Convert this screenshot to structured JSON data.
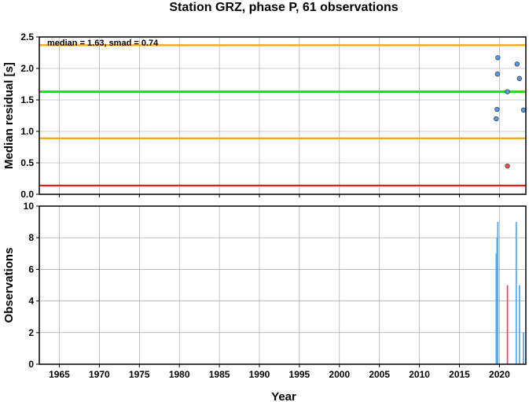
{
  "chart_data": {
    "title": "Station GRZ, phase P, 61 observations",
    "xlabel": "Year",
    "xlim": [
      1962.5,
      2023.3
    ],
    "xticks": [
      "1965",
      "1970",
      "1975",
      "1980",
      "1985",
      "1990",
      "1995",
      "2000",
      "2005",
      "2010",
      "2015",
      "2020"
    ],
    "grid": true,
    "panels": [
      {
        "type": "scatter",
        "ylabel": "Median residual [s]",
        "ylim": [
          0,
          2.5
        ],
        "yticks": [
          "0.0",
          "0.5",
          "1.0",
          "1.5",
          "2.0",
          "2.5"
        ],
        "annotation": "median = 1.63, smad = 0.74",
        "lines": [
          {
            "y": 1.63,
            "color": "#00ee00",
            "role": "median"
          },
          {
            "y": 2.37,
            "color": "#ffa500",
            "role": "median+smad"
          },
          {
            "y": 0.89,
            "color": "#ffa500",
            "role": "median-smad"
          },
          {
            "y": 0.14,
            "color": "#ee1111",
            "role": "lower-limit"
          }
        ],
        "points": [
          {
            "x": 2019.6,
            "y": 1.2,
            "color": "#5599ee"
          },
          {
            "x": 2019.7,
            "y": 1.35,
            "color": "#5599ee"
          },
          {
            "x": 2019.75,
            "y": 1.91,
            "color": "#5599ee"
          },
          {
            "x": 2019.8,
            "y": 2.17,
            "color": "#5599ee"
          },
          {
            "x": 2021.0,
            "y": 1.63,
            "color": "#5599ee"
          },
          {
            "x": 2021.0,
            "y": 0.45,
            "color": "#ee5555"
          },
          {
            "x": 2022.2,
            "y": 2.07,
            "color": "#5599ee"
          },
          {
            "x": 2022.5,
            "y": 1.84,
            "color": "#5599ee"
          },
          {
            "x": 2023.0,
            "y": 1.34,
            "color": "#5599ee"
          }
        ]
      },
      {
        "type": "bar",
        "ylabel": "Observations",
        "ylim": [
          0,
          10
        ],
        "yticks": [
          "0",
          "2",
          "4",
          "6",
          "8",
          "10"
        ],
        "bars": [
          {
            "x": 2019.6,
            "value": 7,
            "color": "#55aaee"
          },
          {
            "x": 2019.7,
            "value": 8,
            "color": "#55aaee"
          },
          {
            "x": 2019.8,
            "value": 9,
            "color": "#55aaee"
          },
          {
            "x": 2021.0,
            "value": 5,
            "color": "#cc5566"
          },
          {
            "x": 2022.1,
            "value": 9,
            "color": "#55aaee"
          },
          {
            "x": 2022.5,
            "value": 5,
            "color": "#55aaee"
          },
          {
            "x": 2023.0,
            "value": 2,
            "color": "#55aaee"
          }
        ]
      }
    ]
  }
}
